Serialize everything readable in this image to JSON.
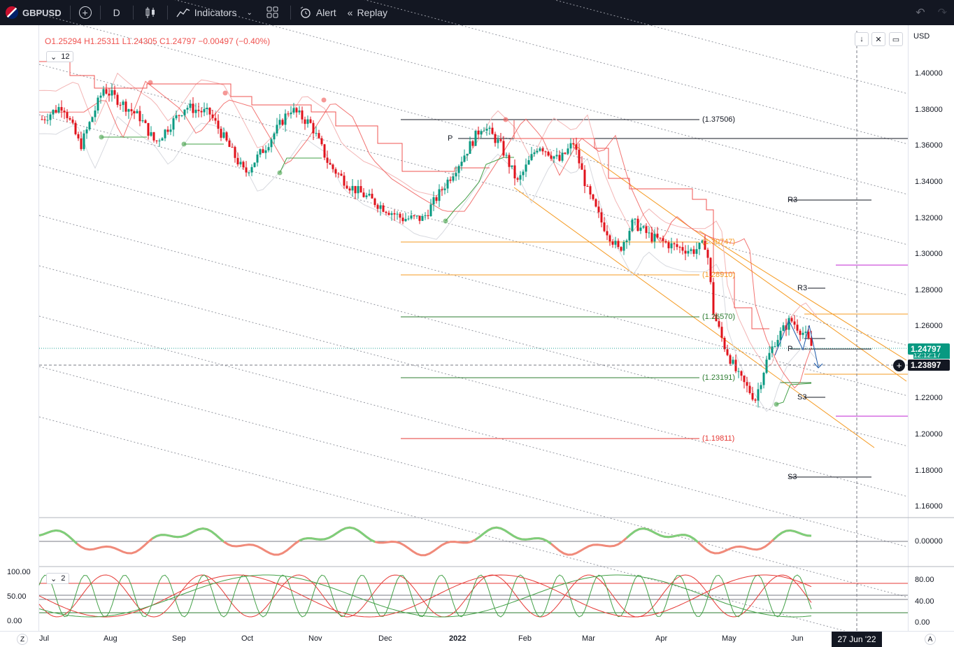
{
  "topbar": {
    "symbol": "GBPUSD",
    "interval": "D",
    "indicators_label": "Indicators",
    "alert_label": "Alert",
    "replay_label": "Replay"
  },
  "ohlc": {
    "open": "O1.25294",
    "high": "H1.25311",
    "low": "L1.24305",
    "close": "C1.24797",
    "change": "−0.00497 (−0.40%)"
  },
  "main_legend_count": "12",
  "osc_legend_count": "2",
  "currency": "USD",
  "price_axis": [
    "1.40000",
    "1.38000",
    "1.36000",
    "1.34000",
    "1.32000",
    "1.30000",
    "1.28000",
    "1.26000",
    "1.22000",
    "1.20000",
    "1.18000",
    "1.16000"
  ],
  "last_price": "1.24797",
  "last_price_sub": "12:12:17",
  "crosshair_price": "1.23897",
  "osc1_axis": "0.00000",
  "osc2_axis": [
    "80.00",
    "40.00",
    "0.00"
  ],
  "osc2_left_axis": [
    "100.00",
    "50.00",
    "0.00"
  ],
  "time_axis": [
    "Jul",
    "Aug",
    "Sep",
    "Oct",
    "Nov",
    "Dec",
    "2022",
    "Feb",
    "Mar",
    "Apr",
    "May",
    "Jun"
  ],
  "crosshair_date": "27 Jun '22",
  "levels": {
    "l1": "(1.37506)",
    "l2": "(1.30747)",
    "l3": "(1.28910)",
    "l4": "(1.26570)",
    "l5": "(1.23191)",
    "l6": "(1.19811)"
  },
  "pivots": {
    "p": "P",
    "r3": "R3",
    "s3": "S3"
  },
  "bottom_left_icon": "Z",
  "bottom_right_icon": "A",
  "colors": {
    "up": "#26a69a",
    "down": "#ef5350",
    "green": "#2e7d32",
    "red": "#e53935",
    "orange": "#f59b23"
  }
}
